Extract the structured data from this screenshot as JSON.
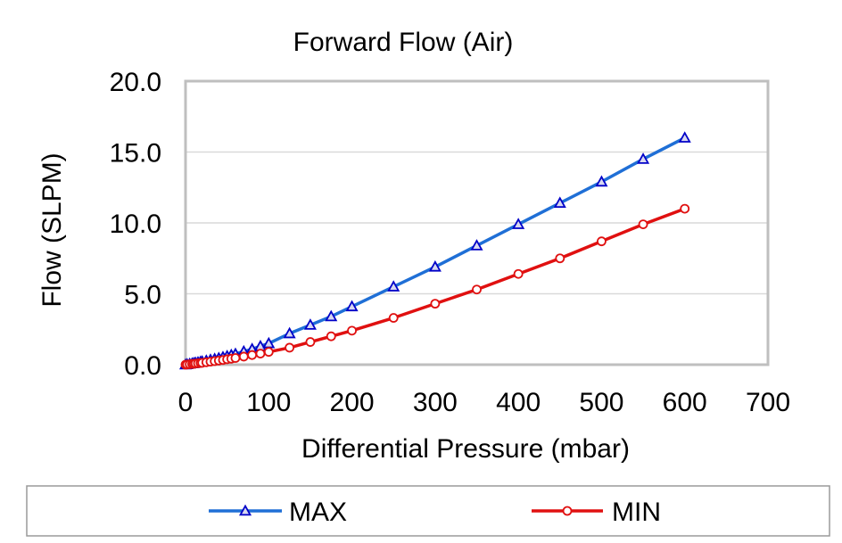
{
  "chart_data": {
    "type": "line",
    "title": "Forward Flow (Air)",
    "xlabel": "Differential Pressure (mbar)",
    "ylabel": "Flow (SLPM)",
    "xlim": [
      0,
      700
    ],
    "ylim": [
      0,
      20
    ],
    "x_ticks": [
      "0",
      "100",
      "200",
      "300",
      "400",
      "500",
      "600",
      "700"
    ],
    "y_ticks": [
      "0.0",
      "5.0",
      "10.0",
      "15.0",
      "20.0"
    ],
    "grid": "horizontal",
    "legend_position": "bottom",
    "series": [
      {
        "name": "MAX",
        "color": "#1f6fd6",
        "marker_color": "#0000c8",
        "marker": "triangle",
        "points": [
          [
            0,
            0.0
          ],
          [
            2,
            0.02
          ],
          [
            5,
            0.05
          ],
          [
            8,
            0.08
          ],
          [
            10,
            0.1
          ],
          [
            12,
            0.13
          ],
          [
            15,
            0.16
          ],
          [
            18,
            0.2
          ],
          [
            20,
            0.22
          ],
          [
            25,
            0.28
          ],
          [
            30,
            0.34
          ],
          [
            35,
            0.4
          ],
          [
            40,
            0.46
          ],
          [
            45,
            0.53
          ],
          [
            50,
            0.6
          ],
          [
            55,
            0.68
          ],
          [
            60,
            0.76
          ],
          [
            70,
            0.93
          ],
          [
            80,
            1.1
          ],
          [
            90,
            1.3
          ],
          [
            100,
            1.5
          ],
          [
            125,
            2.2
          ],
          [
            150,
            2.8
          ],
          [
            175,
            3.4
          ],
          [
            200,
            4.1
          ],
          [
            250,
            5.5
          ],
          [
            300,
            6.9
          ],
          [
            350,
            8.4
          ],
          [
            400,
            9.9
          ],
          [
            450,
            11.4
          ],
          [
            500,
            12.9
          ],
          [
            550,
            14.5
          ],
          [
            600,
            16.0
          ]
        ]
      },
      {
        "name": "MIN",
        "color": "#e01010",
        "marker_color": "#e01010",
        "marker": "circle",
        "points": [
          [
            0,
            0.0
          ],
          [
            2,
            0.01
          ],
          [
            5,
            0.03
          ],
          [
            8,
            0.05
          ],
          [
            10,
            0.06
          ],
          [
            12,
            0.08
          ],
          [
            15,
            0.1
          ],
          [
            18,
            0.12
          ],
          [
            20,
            0.13
          ],
          [
            25,
            0.17
          ],
          [
            30,
            0.21
          ],
          [
            35,
            0.25
          ],
          [
            40,
            0.29
          ],
          [
            45,
            0.33
          ],
          [
            50,
            0.38
          ],
          [
            55,
            0.42
          ],
          [
            60,
            0.47
          ],
          [
            70,
            0.57
          ],
          [
            80,
            0.68
          ],
          [
            90,
            0.78
          ],
          [
            100,
            0.9
          ],
          [
            125,
            1.2
          ],
          [
            150,
            1.6
          ],
          [
            175,
            2.0
          ],
          [
            200,
            2.4
          ],
          [
            250,
            3.3
          ],
          [
            300,
            4.3
          ],
          [
            350,
            5.3
          ],
          [
            400,
            6.4
          ],
          [
            450,
            7.5
          ],
          [
            500,
            8.7
          ],
          [
            550,
            9.9
          ],
          [
            600,
            11.0
          ]
        ]
      }
    ]
  }
}
